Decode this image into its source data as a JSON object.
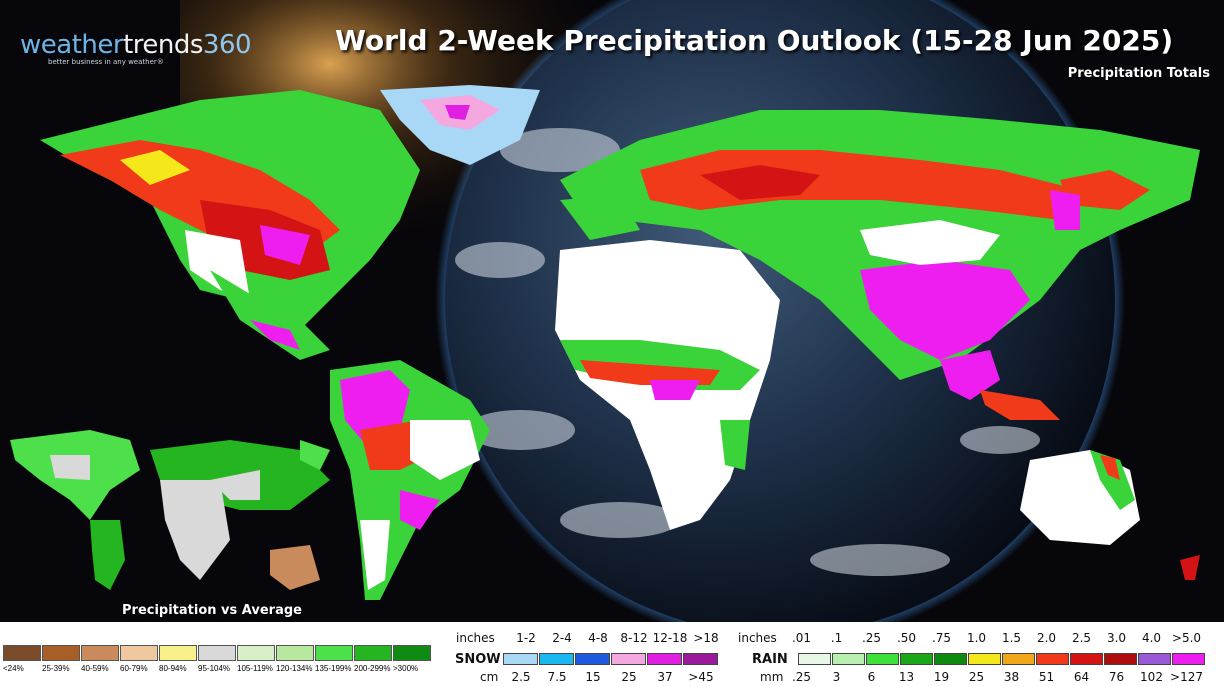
{
  "title": "World 2-Week Precipitation Outlook (15-28 Jun 2025)",
  "subtitle": "Precipitation Totals",
  "logo": {
    "part1": "weather",
    "part2": "trends",
    "part3": "360",
    "tagline": "better business in any weather®"
  },
  "inset_label": "Precipitation vs Average",
  "legend_pct": {
    "labels": [
      "<24%",
      "25-39%",
      "40-59%",
      "60-79%",
      "80-94%",
      "95-104%",
      "105-119%",
      "120-134%",
      "135-199%",
      "200-299%",
      ">300%"
    ],
    "colors": [
      "#7a4a2a",
      "#a85e27",
      "#c98a5c",
      "#f0c8a0",
      "#f7f08a",
      "#d9d9d9",
      "#d7f0c8",
      "#b8e8a0",
      "#4ee04a",
      "#25b520",
      "#0f8a12"
    ]
  },
  "legend_snow": {
    "label": "SNOW",
    "inches_label": "inches",
    "inches": [
      "1-2",
      "2-4",
      "4-8",
      "8-12",
      "12-18",
      ">18"
    ],
    "cm_label": "cm",
    "cm": [
      "2.5",
      "7.5",
      "15",
      "25",
      "37",
      ">45"
    ],
    "colors": [
      "#a8d8f5",
      "#19b8f0",
      "#1e5ae0",
      "#f5a8e0",
      "#e01fe0",
      "#9b1a9b"
    ]
  },
  "legend_rain": {
    "label": "RAIN",
    "inches_label": "inches",
    "inches": [
      ".01",
      ".1",
      ".25",
      ".50",
      ".75",
      "1.0",
      "1.5",
      "2.0",
      "2.5",
      "3.0",
      "4.0",
      ">5.0"
    ],
    "mm_label": "mm",
    "mm": [
      ".25",
      "3",
      "6",
      "13",
      "19",
      "25",
      "38",
      "51",
      "64",
      "76",
      "102",
      ">127"
    ],
    "colors": [
      "#e6f7e6",
      "#b8f0b0",
      "#3ee03a",
      "#1aa81a",
      "#0e8a0e",
      "#f5e81a",
      "#f0a81a",
      "#f03a1a",
      "#d41414",
      "#b00e0e",
      "#9a5ad8",
      "#ef1ef0"
    ]
  }
}
